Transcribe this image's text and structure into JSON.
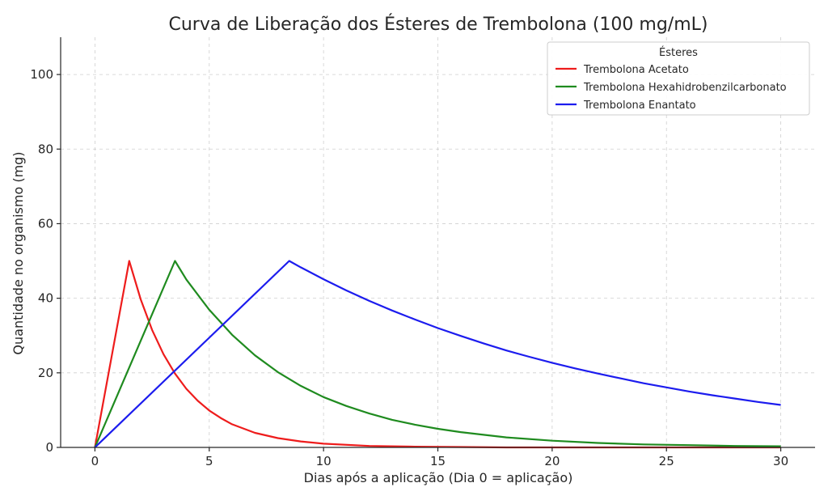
{
  "chart_data": {
    "type": "line",
    "title": "Curva de Liberação dos Ésteres de Trembolona (100 mg/mL)",
    "xlabel": "Dias após a aplicação (Dia 0 = aplicação)",
    "ylabel": "Quantidade no organismo (mg)",
    "xlim": [
      -1.5,
      31.5
    ],
    "ylim": [
      0,
      110
    ],
    "xticks": [
      0,
      5,
      10,
      15,
      20,
      25,
      30
    ],
    "yticks": [
      0,
      20,
      40,
      60,
      80,
      100
    ],
    "grid": true,
    "legend": {
      "title": "Ésteres",
      "placement": "top-right"
    },
    "series": [
      {
        "name": "Trembolona Acetato",
        "color": "#ee1c1c",
        "x": [
          0,
          1.5,
          2,
          2.5,
          3,
          3.5,
          4,
          4.5,
          5,
          5.5,
          6,
          7,
          8,
          9,
          10,
          12,
          14,
          16,
          18,
          20,
          25,
          30
        ],
        "y": [
          0,
          50,
          39.7,
          31.5,
          25,
          19.8,
          15.7,
          12.5,
          9.9,
          7.9,
          6.2,
          3.9,
          2.5,
          1.6,
          1,
          0.4,
          0.2,
          0.1,
          0,
          0,
          0,
          0
        ]
      },
      {
        "name": "Trembolona Hexahidrobenzilcarbonato",
        "color": "#1f8b1f",
        "x": [
          0,
          3.5,
          4,
          5,
          6,
          7,
          8,
          9,
          10,
          11,
          12,
          13,
          14,
          15,
          16,
          18,
          20,
          22,
          24,
          26,
          28,
          30
        ],
        "y": [
          0,
          50,
          45,
          36.9,
          30.2,
          24.7,
          20.2,
          16.5,
          13.5,
          11.1,
          9.1,
          7.4,
          6.1,
          5,
          4.1,
          2.7,
          1.8,
          1.2,
          0.8,
          0.6,
          0.4,
          0.3
        ]
      },
      {
        "name": "Trembolona Enantato",
        "color": "#1c1cee",
        "x": [
          0,
          8.5,
          9,
          10,
          11,
          12,
          13,
          14,
          15,
          16,
          17,
          18,
          19,
          20,
          21,
          22,
          23,
          24,
          25,
          26,
          27,
          28,
          29,
          30
        ],
        "y": [
          0,
          50,
          48.3,
          45.1,
          42.1,
          39.3,
          36.7,
          34.3,
          32,
          29.9,
          27.9,
          26,
          24.3,
          22.7,
          21.2,
          19.8,
          18.5,
          17.2,
          16.1,
          15,
          14,
          13.1,
          12.2,
          11.4
        ]
      }
    ]
  }
}
